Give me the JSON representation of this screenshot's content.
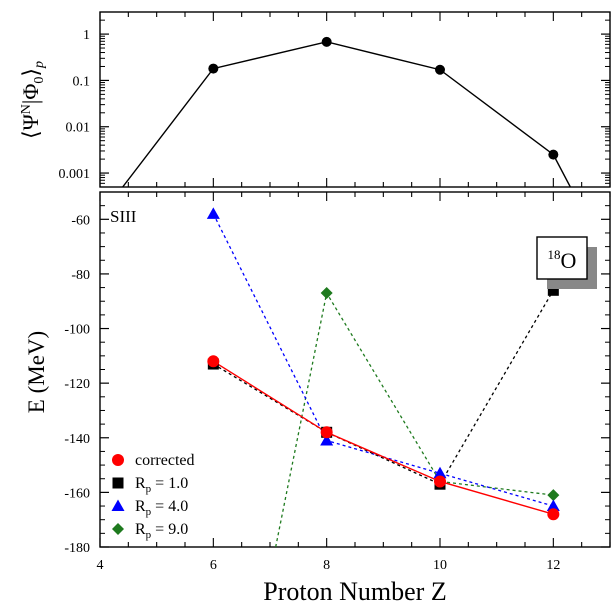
{
  "chart_data": [
    {
      "type": "line",
      "ylabel": "⟨Ψ^N|Φ_0⟩_p",
      "yscale": "log",
      "ylim": [
        0.0005,
        3
      ],
      "xlim": [
        4,
        13
      ],
      "yticks": [
        {
          "value": 1,
          "label": "1"
        },
        {
          "value": 0.1,
          "label": "0.1"
        },
        {
          "value": 0.01,
          "label": "0.01"
        },
        {
          "value": 0.001,
          "label": "0.001"
        }
      ],
      "series": [
        {
          "color": "#000000",
          "marker": "circle",
          "x": [
            4.4,
            6,
            8,
            10,
            12,
            12.3
          ],
          "y": [
            0.0005,
            0.18,
            0.68,
            0.17,
            0.0025,
            0.0005
          ]
        }
      ]
    },
    {
      "type": "line",
      "annotation": "SIII",
      "nucleus_box": {
        "mass": "18",
        "symbol": "O"
      },
      "xlabel": "Proton Number Z",
      "ylabel": "E (MeV)",
      "xlim": [
        4,
        13
      ],
      "ylim": [
        -180,
        -50
      ],
      "xticks": [
        4,
        6,
        8,
        10,
        12
      ],
      "yticks": [
        -60,
        -80,
        -100,
        -120,
        -140,
        -160,
        -180
      ],
      "legend_position": "bottom-left",
      "series": [
        {
          "name": "corrected",
          "color": "#ff0000",
          "marker": "circle",
          "line": "solid",
          "x": [
            6,
            8,
            10,
            12
          ],
          "y": [
            -112,
            -138,
            -156,
            -168
          ]
        },
        {
          "name": "R_p = 1.0",
          "label_main": "R",
          "label_sub": "p",
          "label_rest": " = 1.0",
          "color": "#000000",
          "marker": "square",
          "line": "dotted",
          "x": [
            6,
            8,
            10,
            12
          ],
          "y": [
            -113,
            -138,
            -157,
            -86
          ]
        },
        {
          "name": "R_p = 4.0",
          "label_main": "R",
          "label_sub": "p",
          "label_rest": " = 4.0",
          "color": "#0000ff",
          "marker": "triangle",
          "line": "dotted",
          "x": [
            6,
            8,
            10,
            12
          ],
          "y": [
            -58,
            -141,
            -153,
            -165
          ]
        },
        {
          "name": "R_p = 9.0",
          "label_main": "R",
          "label_sub": "p",
          "label_rest": " = 9.0",
          "color": "#1e7a1e",
          "marker": "diamond",
          "line": "dotted",
          "x": [
            7.1,
            8,
            10,
            12
          ],
          "y": [
            -180,
            -87,
            -156,
            -161
          ]
        }
      ]
    }
  ]
}
